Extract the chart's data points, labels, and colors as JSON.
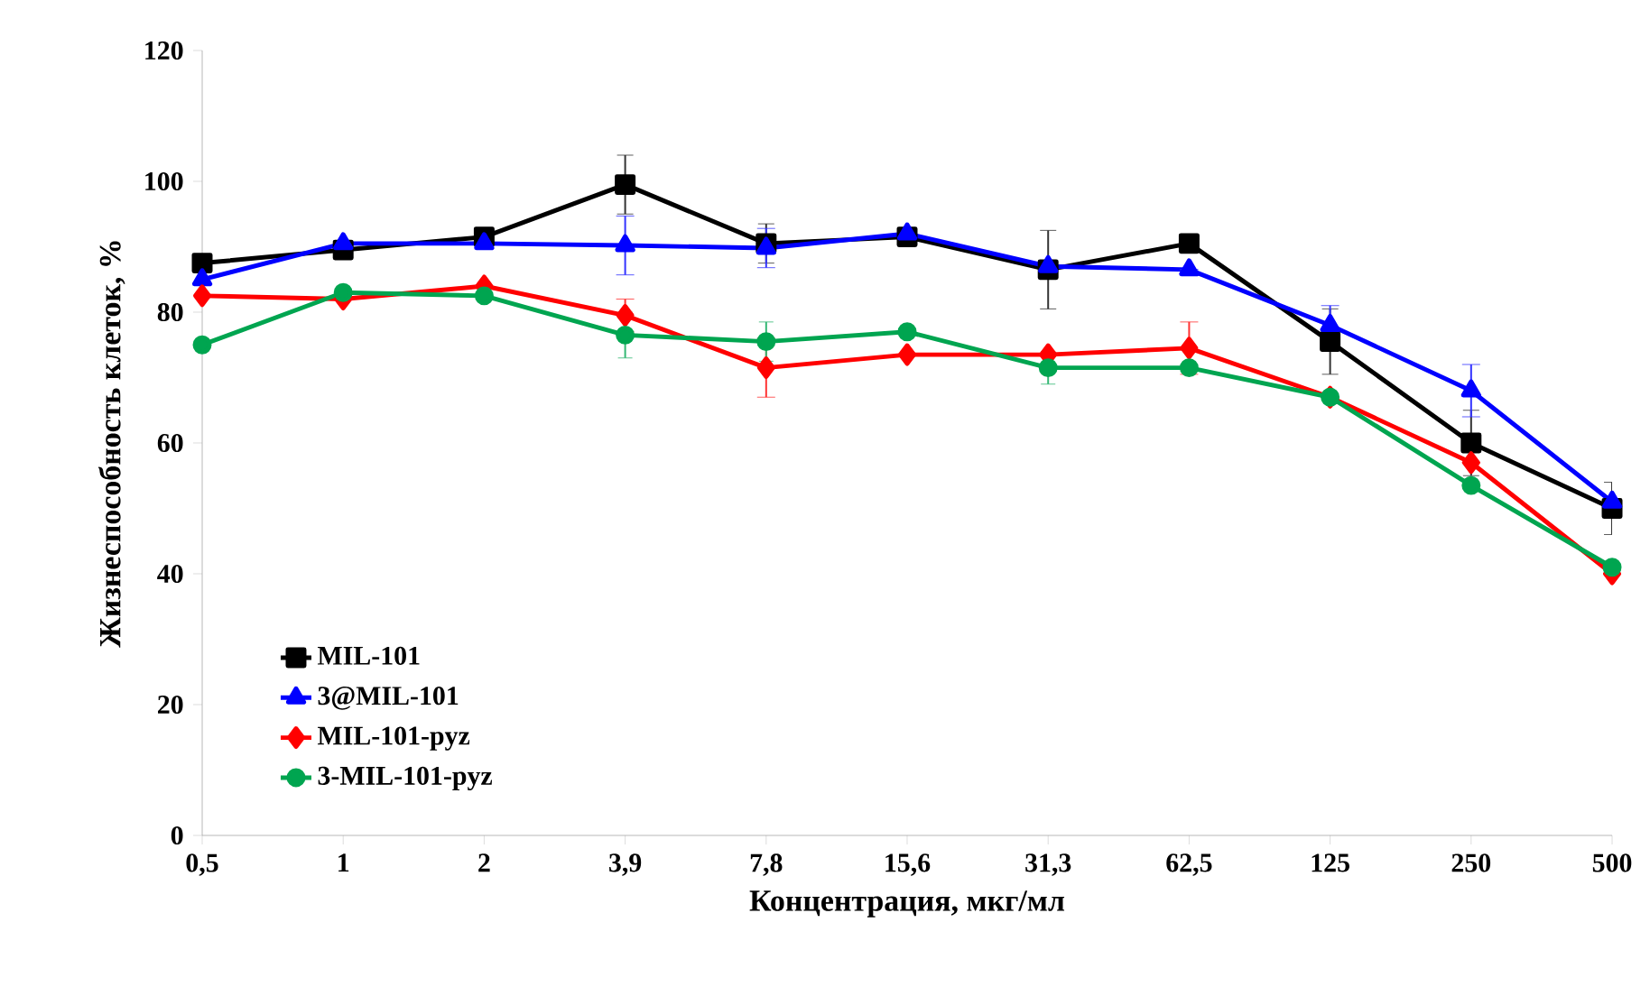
{
  "chart_data": {
    "type": "line",
    "xlabel": "Концентрация,  мкг/мл",
    "ylabel": "Жизнеспособность  клеток,  %",
    "categories": [
      "0,5",
      "1",
      "2",
      "3,9",
      "7,8",
      "15,6",
      "31,3",
      "62,5",
      "125",
      "250",
      "500"
    ],
    "ylim": [
      0,
      120
    ],
    "yticks": [
      0,
      20,
      40,
      60,
      80,
      100,
      120
    ],
    "grid": false,
    "legend": "bottom left",
    "line_style": "solid",
    "series": [
      {
        "name": "MIL-101",
        "color": "#000000",
        "marker": "square",
        "values": [
          87.5,
          89.5,
          91.5,
          99.5,
          90.5,
          91.5,
          86.5,
          90.5,
          75.5,
          60,
          50
        ],
        "errors": [
          null,
          null,
          null,
          4.5,
          3,
          null,
          6,
          null,
          5,
          5,
          4
        ]
      },
      {
        "name": "3@MIL-101",
        "color": "#0000ff",
        "marker": "triangle",
        "values": [
          85,
          90.5,
          90.5,
          90.2,
          89.8,
          92,
          87,
          86.5,
          78,
          68,
          51
        ],
        "errors": [
          null,
          null,
          null,
          4.5,
          3,
          null,
          null,
          null,
          3,
          4,
          null
        ]
      },
      {
        "name": "MIL-101-pyz",
        "color": "#ff0000",
        "marker": "diamond",
        "values": [
          82.5,
          82,
          84,
          79.5,
          71.5,
          73.5,
          73.5,
          74.5,
          67,
          57,
          40
        ],
        "errors": [
          null,
          null,
          null,
          2.5,
          4.5,
          null,
          null,
          4,
          null,
          null,
          null
        ]
      },
      {
        "name": "3-MIL-101-pyz",
        "color": "#00a550",
        "marker": "circle",
        "values": [
          75,
          83,
          82.5,
          76.5,
          75.5,
          77,
          71.5,
          71.5,
          67,
          53.5,
          41
        ],
        "errors": [
          null,
          null,
          null,
          3.5,
          3,
          null,
          2.5,
          null,
          null,
          null,
          null
        ]
      }
    ]
  }
}
